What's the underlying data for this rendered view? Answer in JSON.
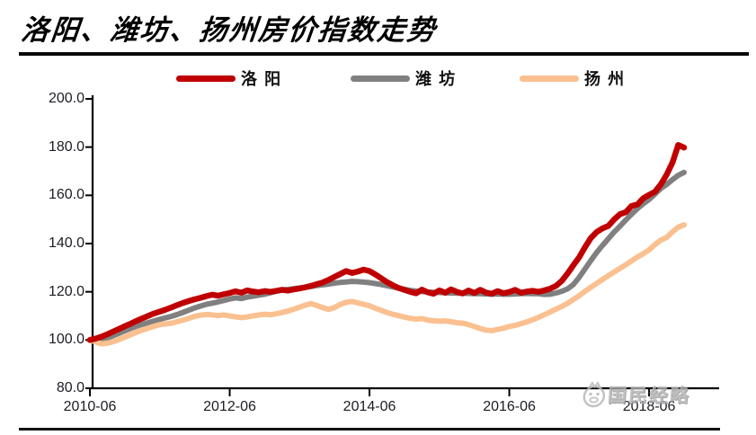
{
  "title": "洛阳、潍坊、扬州房价指数走势",
  "watermark": {
    "text": "国民经略",
    "logo": "mascot-face-logo"
  },
  "colors": {
    "luoyang": "#C00000",
    "weifang": "#808080",
    "yangzhou": "#FAC090",
    "axis": "#000000",
    "tick_label": "#1c1c24",
    "watermark_gray": "#b4b4b4"
  },
  "chart_data": {
    "type": "line",
    "title": "洛阳、潍坊、扬州房价指数走势",
    "x_unit": "month",
    "x_start": "2010-06",
    "x_end": "2018-12",
    "ylim": [
      80,
      200
    ],
    "grid": false,
    "legend_position": "top",
    "y_ticks": [
      {
        "value": 200,
        "label": "200.0"
      },
      {
        "value": 180,
        "label": "180.0"
      },
      {
        "value": 160,
        "label": "160.0"
      },
      {
        "value": 140,
        "label": "140.0"
      },
      {
        "value": 120,
        "label": "120.0"
      },
      {
        "value": 100,
        "label": "100.0"
      },
      {
        "value": 80,
        "label": "80.0"
      }
    ],
    "x_ticks": [
      {
        "label": "2010-06",
        "month": 0
      },
      {
        "label": "2012-06",
        "month": 24
      },
      {
        "label": "2014-06",
        "month": 48
      },
      {
        "label": "2016-06",
        "month": 72
      },
      {
        "label": "2018-06",
        "month": 96
      }
    ],
    "series": [
      {
        "name": "洛阳",
        "color": "#C00000",
        "line_width": 6.5,
        "values": [
          100.0,
          100.6,
          101.4,
          102.4,
          103.5,
          104.6,
          105.7,
          106.8,
          107.9,
          109.0,
          110.0,
          111.0,
          111.8,
          112.6,
          113.5,
          114.5,
          115.4,
          116.2,
          116.9,
          117.5,
          118.2,
          118.8,
          118.4,
          119.0,
          119.5,
          120.2,
          119.6,
          120.6,
          120.1,
          119.8,
          120.3,
          120.0,
          120.4,
          120.8,
          120.5,
          121.0,
          121.4,
          121.9,
          122.5,
          123.2,
          123.9,
          125.0,
          126.2,
          127.4,
          128.6,
          127.8,
          128.4,
          129.2,
          128.6,
          127.2,
          125.6,
          124.0,
          122.7,
          121.6,
          120.8,
          120.0,
          119.4,
          120.9,
          119.8,
          119.2,
          120.6,
          119.6,
          121.0,
          120.0,
          119.3,
          120.5,
          119.5,
          120.8,
          119.7,
          119.2,
          120.3,
          119.4,
          119.9,
          120.8,
          119.6,
          120.1,
          120.4,
          120.0,
          120.6,
          121.3,
          122.4,
          124.5,
          127.6,
          131.0,
          134.3,
          138.5,
          142.3,
          144.8,
          146.3,
          147.3,
          150.0,
          152.2,
          153.0,
          155.6,
          156.2,
          158.8,
          160.2,
          161.5,
          164.5,
          168.5,
          173.5,
          180.9,
          179.8
        ]
      },
      {
        "name": "潍坊",
        "color": "#808080",
        "line_width": 6,
        "values": [
          100.0,
          100.3,
          100.0,
          100.8,
          101.8,
          102.8,
          103.8,
          104.8,
          105.7,
          106.5,
          107.2,
          107.9,
          108.6,
          109.2,
          109.8,
          110.6,
          111.5,
          112.4,
          113.3,
          114.1,
          114.8,
          115.3,
          115.8,
          116.4,
          117.0,
          117.5,
          117.2,
          117.8,
          118.2,
          118.6,
          119.0,
          119.6,
          120.2,
          120.8,
          121.0,
          121.3,
          121.6,
          121.9,
          122.2,
          122.6,
          122.9,
          123.2,
          123.6,
          123.9,
          124.1,
          124.3,
          124.2,
          124.0,
          123.8,
          123.4,
          123.0,
          122.5,
          122.0,
          121.5,
          121.0,
          120.6,
          120.3,
          120.1,
          119.9,
          119.8,
          119.7,
          119.6,
          119.5,
          119.4,
          119.4,
          119.3,
          119.2,
          119.2,
          119.1,
          119.0,
          119.1,
          119.0,
          119.0,
          119.1,
          119.2,
          119.3,
          119.2,
          119.2,
          118.9,
          119.0,
          119.5,
          120.2,
          121.2,
          123.0,
          126.0,
          129.5,
          133.0,
          136.3,
          139.2,
          142.0,
          144.8,
          147.2,
          149.8,
          152.2,
          154.5,
          156.5,
          158.3,
          160.5,
          162.8,
          164.5,
          166.5,
          168.3,
          169.5
        ]
      },
      {
        "name": "扬州",
        "color": "#FAC090",
        "line_width": 6,
        "values": [
          100.0,
          99.2,
          98.4,
          98.7,
          99.3,
          100.2,
          101.2,
          102.2,
          103.2,
          104.1,
          104.9,
          105.7,
          106.4,
          106.7,
          107.0,
          107.6,
          108.3,
          109.0,
          109.8,
          110.3,
          110.6,
          110.4,
          110.1,
          110.4,
          110.0,
          109.6,
          109.3,
          109.6,
          110.0,
          110.4,
          110.7,
          110.5,
          110.9,
          111.4,
          112.0,
          112.8,
          113.6,
          114.5,
          115.1,
          114.3,
          113.4,
          112.7,
          113.5,
          114.8,
          115.6,
          116.0,
          115.4,
          114.8,
          114.2,
          113.2,
          112.3,
          111.4,
          110.7,
          110.1,
          109.5,
          109.0,
          108.7,
          108.9,
          108.3,
          108.0,
          107.8,
          107.9,
          107.6,
          107.2,
          107.0,
          106.4,
          105.6,
          104.8,
          104.1,
          103.9,
          104.4,
          104.9,
          105.6,
          106.1,
          106.8,
          107.5,
          108.4,
          109.4,
          110.5,
          111.6,
          112.8,
          113.9,
          115.2,
          116.8,
          118.4,
          120.2,
          121.9,
          123.5,
          125.1,
          126.7,
          128.2,
          129.7,
          131.2,
          132.8,
          134.4,
          135.8,
          137.4,
          139.6,
          141.4,
          142.5,
          144.8,
          146.8,
          147.8
        ]
      }
    ]
  }
}
